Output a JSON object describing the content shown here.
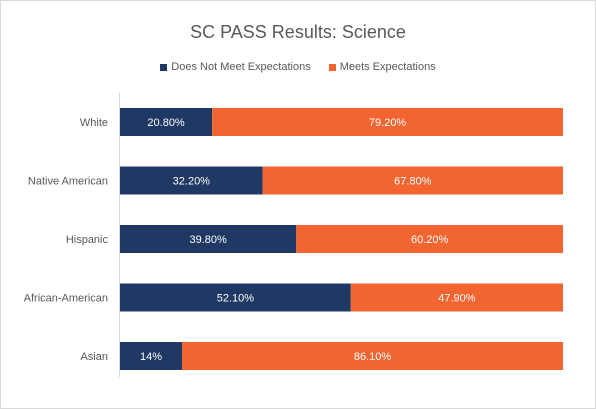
{
  "chart_data": {
    "type": "bar",
    "orientation": "horizontal",
    "stacked": true,
    "title": "SC PASS Results: Science",
    "xlabel": "",
    "ylabel": "",
    "xlim": [
      0,
      100
    ],
    "legend_position": "top",
    "grid": false,
    "categories": [
      "White",
      "Native American",
      "Hispanic",
      "African-American",
      "Asian"
    ],
    "series": [
      {
        "name": "Does Not Meet Expectations",
        "color": "#203864",
        "values": [
          20.8,
          32.2,
          39.8,
          52.1,
          14
        ],
        "labels": [
          "20.80%",
          "32.20%",
          "39.80%",
          "52.10%",
          "14%"
        ]
      },
      {
        "name": "Meets Expectations",
        "color": "#f26531",
        "values": [
          79.2,
          67.8,
          60.2,
          47.9,
          86.1
        ],
        "labels": [
          "79.20%",
          "67.80%",
          "60.20%",
          "47.90%",
          "86.10%"
        ]
      }
    ]
  }
}
